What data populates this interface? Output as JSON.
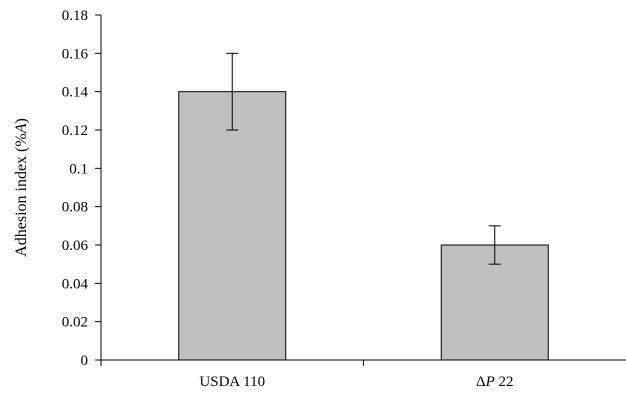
{
  "chart_data": {
    "type": "bar",
    "title": "",
    "xlabel": "",
    "ylabel": "Adhesion index (%A)",
    "ylabel_parts": [
      "Adhesion index (%",
      "A",
      ")"
    ],
    "categories": [
      "USDA 110",
      "ΔP 22"
    ],
    "category_parts": [
      [
        {
          "text": "USDA 110",
          "italic": false
        }
      ],
      [
        {
          "text": "Δ",
          "italic": false
        },
        {
          "text": "P",
          "italic": true
        },
        {
          "text": " 22",
          "italic": false
        }
      ]
    ],
    "values": [
      0.14,
      0.06
    ],
    "error": [
      0.02,
      0.01
    ],
    "ylim": [
      0,
      0.18
    ],
    "ytick_values": [
      0,
      0.02,
      0.04,
      0.06,
      0.08,
      0.1,
      0.12,
      0.14,
      0.16,
      0.18
    ],
    "ytick_labels": [
      "0",
      "0.02",
      "0.04",
      "0.06",
      "0.08",
      "0.1",
      "0.12",
      "0.14",
      "0.16",
      "0.18"
    ],
    "grid": false,
    "legend": "none",
    "colors": {
      "bar_fill": "#c0c0c0",
      "bar_stroke": "#000000",
      "axis": "#000000"
    }
  }
}
